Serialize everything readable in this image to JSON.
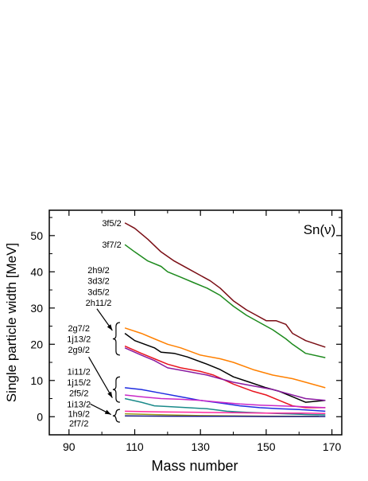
{
  "chart_data": {
    "type": "line",
    "title": "Sn(ν)",
    "xlabel": "Mass number",
    "ylabel": "Single particle width [MeV]",
    "xlim": [
      84,
      173
    ],
    "ylim": [
      -5,
      57
    ],
    "x_ticks": [
      90,
      110,
      130,
      150,
      170
    ],
    "y_ticks": [
      0,
      10,
      20,
      30,
      40,
      50
    ],
    "grid": false,
    "series": [
      {
        "name": "3f5/2",
        "color": "#7a0d14",
        "points": [
          [
            107,
            53.5
          ],
          [
            110,
            52
          ],
          [
            114,
            49
          ],
          [
            118,
            45.5
          ],
          [
            122,
            43
          ],
          [
            126,
            41
          ],
          [
            130,
            39
          ],
          [
            133,
            37.5
          ],
          [
            136,
            35.5
          ],
          [
            140,
            32
          ],
          [
            144,
            29.5
          ],
          [
            147,
            28
          ],
          [
            150,
            26.5
          ],
          [
            153,
            26.5
          ],
          [
            156,
            25.5
          ],
          [
            158,
            23
          ],
          [
            162,
            21
          ],
          [
            168,
            19.2
          ]
        ]
      },
      {
        "name": "3f7/2",
        "color": "#1d8a1d",
        "points": [
          [
            107,
            47.5
          ],
          [
            110,
            45.5
          ],
          [
            114,
            43
          ],
          [
            118,
            41.5
          ],
          [
            120,
            40
          ],
          [
            124,
            38.5
          ],
          [
            128,
            37
          ],
          [
            132,
            35.5
          ],
          [
            136,
            33.5
          ],
          [
            140,
            30.5
          ],
          [
            144,
            28
          ],
          [
            148,
            26
          ],
          [
            152,
            24
          ],
          [
            156,
            21.5
          ],
          [
            158,
            20
          ],
          [
            162,
            17.5
          ],
          [
            168,
            16.3
          ]
        ]
      },
      {
        "name": "2g7/2 (orange)",
        "color": "#ff8000",
        "points": [
          [
            107,
            24.5
          ],
          [
            112,
            23
          ],
          [
            116,
            21.5
          ],
          [
            120,
            20
          ],
          [
            124,
            19
          ],
          [
            130,
            17
          ],
          [
            136,
            16
          ],
          [
            140,
            15
          ],
          [
            146,
            13
          ],
          [
            152,
            11.5
          ],
          [
            158,
            10.5
          ],
          [
            162,
            9.5
          ],
          [
            168,
            8
          ]
        ]
      },
      {
        "name": "1j13/2 (black)",
        "color": "#000000",
        "points": [
          [
            107,
            23
          ],
          [
            110,
            21
          ],
          [
            116,
            19
          ],
          [
            118,
            17.8
          ],
          [
            122,
            17.5
          ],
          [
            126,
            16.5
          ],
          [
            132,
            14.5
          ],
          [
            136,
            13
          ],
          [
            140,
            11
          ],
          [
            145,
            9.5
          ],
          [
            150,
            8
          ],
          [
            154,
            7
          ],
          [
            158,
            5.5
          ],
          [
            162,
            4
          ],
          [
            168,
            4.5
          ]
        ]
      },
      {
        "name": "2g9/2 (red)",
        "color": "#e8141e",
        "points": [
          [
            107,
            19.5
          ],
          [
            112,
            17.5
          ],
          [
            116,
            16
          ],
          [
            120,
            14.5
          ],
          [
            124,
            13.5
          ],
          [
            130,
            12.5
          ],
          [
            134,
            11.5
          ],
          [
            140,
            9
          ],
          [
            146,
            7
          ],
          [
            150,
            6
          ],
          [
            154,
            4.5
          ],
          [
            158,
            3
          ],
          [
            162,
            2.5
          ],
          [
            168,
            2.5
          ]
        ]
      },
      {
        "name": "2h11/2 (purple)",
        "color": "#8a1aa0",
        "points": [
          [
            107,
            19
          ],
          [
            112,
            17
          ],
          [
            116,
            15.5
          ],
          [
            120,
            13.5
          ],
          [
            126,
            12.5
          ],
          [
            132,
            11.5
          ],
          [
            136,
            10.5
          ],
          [
            140,
            9.5
          ],
          [
            146,
            8.5
          ],
          [
            152,
            7.5
          ],
          [
            156,
            6.5
          ],
          [
            162,
            5
          ],
          [
            168,
            4.5
          ]
        ]
      },
      {
        "name": "1i11/2 (blue)",
        "color": "#1f2ce0",
        "points": [
          [
            107,
            8
          ],
          [
            112,
            7.5
          ],
          [
            118,
            6.5
          ],
          [
            124,
            5.5
          ],
          [
            130,
            4.5
          ],
          [
            136,
            3.8
          ],
          [
            142,
            3
          ],
          [
            148,
            2.5
          ],
          [
            154,
            2.2
          ],
          [
            160,
            2
          ],
          [
            168,
            1.5
          ]
        ]
      },
      {
        "name": "1j15/2 (magenta)",
        "color": "#c828c8",
        "points": [
          [
            107,
            6
          ],
          [
            112,
            5.5
          ],
          [
            118,
            5
          ],
          [
            124,
            4.8
          ],
          [
            130,
            4.5
          ],
          [
            136,
            4
          ],
          [
            142,
            3.5
          ],
          [
            148,
            3.2
          ],
          [
            154,
            3
          ],
          [
            160,
            2.8
          ],
          [
            168,
            2.5
          ]
        ]
      },
      {
        "name": "2f5/2 (teal)",
        "color": "#1a8a8a",
        "points": [
          [
            107,
            5
          ],
          [
            112,
            4
          ],
          [
            116,
            3
          ],
          [
            120,
            2.8
          ],
          [
            126,
            2.5
          ],
          [
            132,
            2.2
          ],
          [
            138,
            1.5
          ],
          [
            144,
            1.2
          ],
          [
            150,
            1
          ],
          [
            156,
            0.8
          ],
          [
            162,
            0.6
          ],
          [
            168,
            0.5
          ]
        ]
      },
      {
        "name": "1i13/2 (pink)",
        "color": "#ff28a0",
        "points": [
          [
            107,
            1.5
          ],
          [
            118,
            1.3
          ],
          [
            130,
            1.2
          ],
          [
            140,
            1.1
          ],
          [
            150,
            1.0
          ],
          [
            160,
            1.0
          ],
          [
            168,
            0.9
          ]
        ]
      },
      {
        "name": "1h9/2 (olive)",
        "color": "#9a9a1a",
        "points": [
          [
            107,
            0.8
          ],
          [
            120,
            0.5
          ],
          [
            130,
            0.3
          ],
          [
            140,
            0.2
          ],
          [
            150,
            0.15
          ],
          [
            160,
            0.1
          ],
          [
            166,
            0.1
          ]
        ]
      },
      {
        "name": "2f7/2 (navy)",
        "color": "#1a1a80",
        "points": [
          [
            107,
            0.2
          ],
          [
            120,
            0.15
          ],
          [
            130,
            0.1
          ],
          [
            140,
            0.1
          ],
          [
            150,
            0.05
          ],
          [
            160,
            0.05
          ],
          [
            168,
            0.05
          ]
        ]
      }
    ],
    "annotations": [
      {
        "text": "3f5/2",
        "x": 103,
        "y": 53.5
      },
      {
        "text": "3f7/2",
        "x": 103,
        "y": 47.5
      },
      {
        "text": "2h9/2",
        "x": 99,
        "y": 40.5
      },
      {
        "text": "3d3/2",
        "x": 99,
        "y": 37.5
      },
      {
        "text": "3d5/2",
        "x": 99,
        "y": 34.5
      },
      {
        "text": "2h11/2",
        "x": 99,
        "y": 31.5
      },
      {
        "text": "2g7/2",
        "x": 93,
        "y": 24.5
      },
      {
        "text": "1j13/2",
        "x": 93,
        "y": 21.5
      },
      {
        "text": "2g9/2",
        "x": 93,
        "y": 18.5
      },
      {
        "text": "1i11/2",
        "x": 93,
        "y": 12.5
      },
      {
        "text": "1j15/2",
        "x": 93,
        "y": 9.5
      },
      {
        "text": "2f5/2",
        "x": 93,
        "y": 6.5
      },
      {
        "text": "1i13/2",
        "x": 93,
        "y": 3.5
      },
      {
        "text": "1h9/2",
        "x": 93,
        "y": 0.8
      },
      {
        "text": "2f7/2",
        "x": 93,
        "y": -1.8
      }
    ]
  }
}
